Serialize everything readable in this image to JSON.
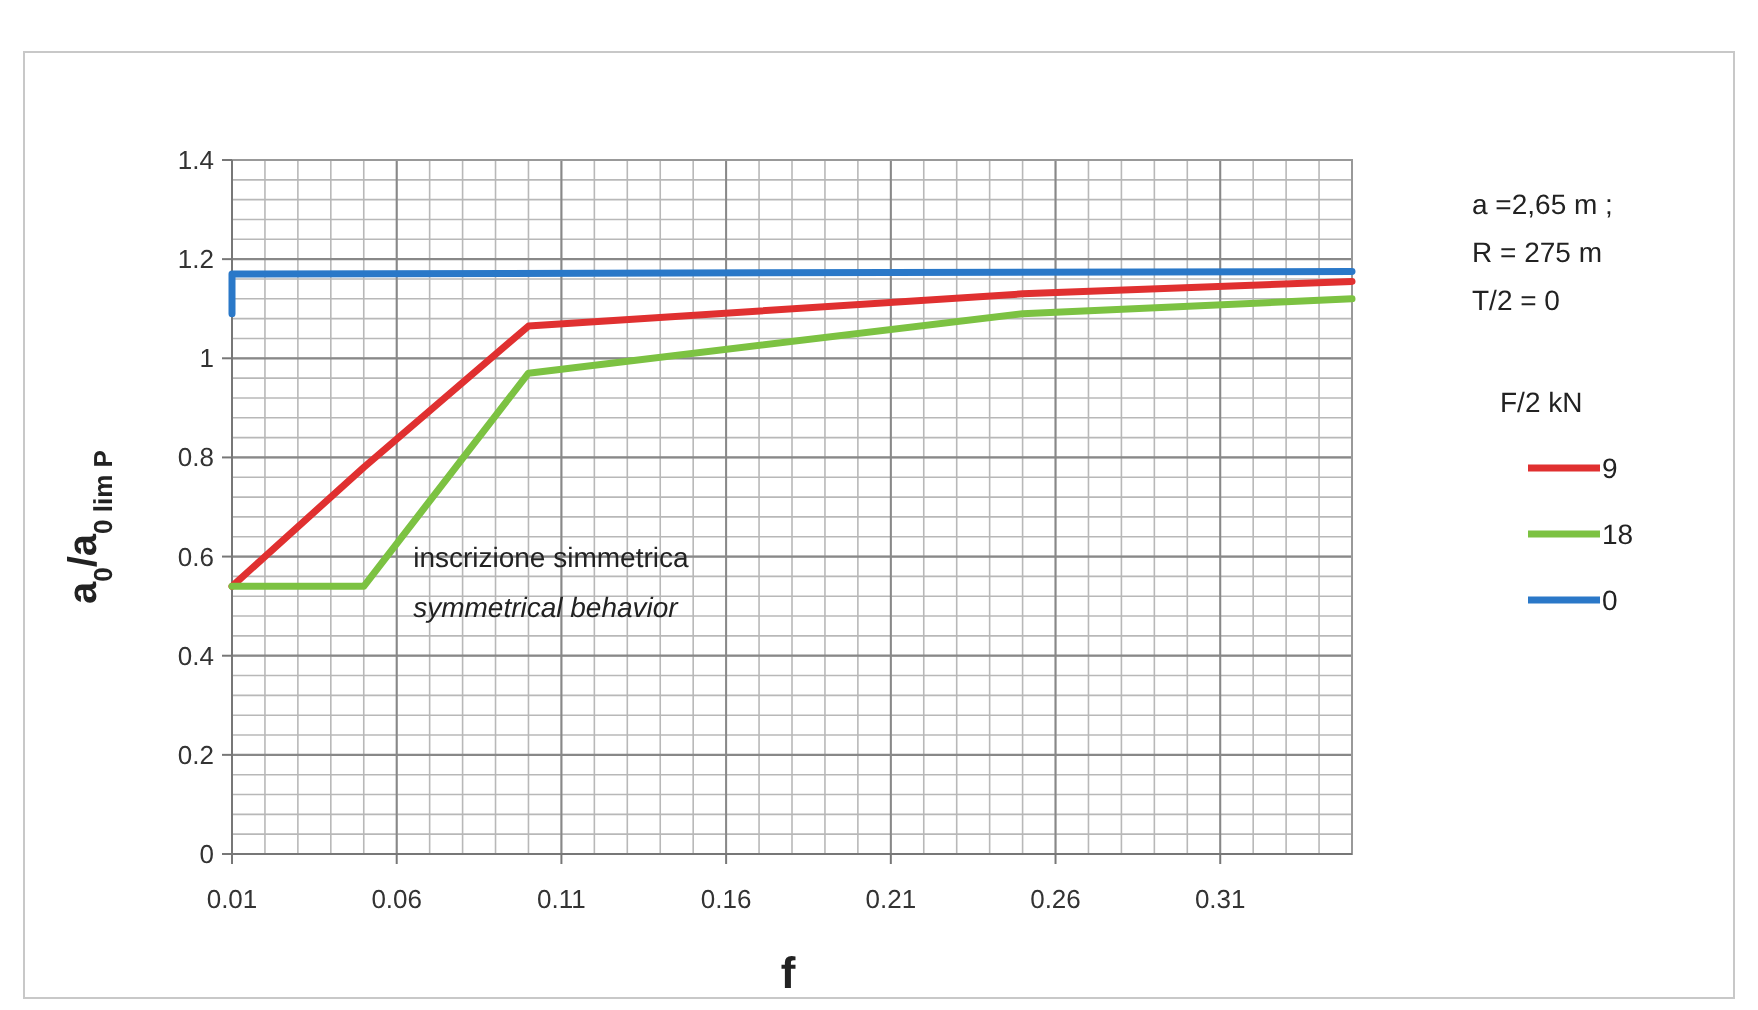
{
  "chart_data": {
    "type": "line",
    "xlabel": "f",
    "ylabel": "a$_{0}$/a$_{0 lim P}$",
    "legend_title": "F/2  kN",
    "legend": "right",
    "grid": true,
    "marker": "none",
    "line_style": "solid",
    "xlim": [
      0.01,
      0.35
    ],
    "xticks": [
      0.01,
      0.06,
      0.11,
      0.16,
      0.21,
      0.26,
      0.31
    ],
    "ylim": [
      0,
      1.4
    ],
    "yticks": [
      0,
      0.2,
      0.4,
      0.6,
      0.8,
      1,
      1.2,
      1.4
    ],
    "series": [
      {
        "name": "9",
        "color": "#e03030",
        "x": [
          0.01,
          0.05,
          0.1,
          0.25,
          0.35
        ],
        "values": [
          0.54,
          0.78,
          1.065,
          1.13,
          1.155
        ]
      },
      {
        "name": "18",
        "color": "#7cc242",
        "x": [
          0.01,
          0.05,
          0.1,
          0.25,
          0.35
        ],
        "values": [
          0.54,
          0.54,
          0.97,
          1.09,
          1.12
        ]
      },
      {
        "name": "0",
        "color": "#2a78c8",
        "x": [
          0.01,
          0.01,
          0.35
        ],
        "values": [
          1.09,
          1.17,
          1.175
        ]
      }
    ],
    "annotations": [
      "a =2,65  m ;",
      "R = 275  m",
      "T/2 = 0",
      "inscrizione simmetrica",
      "symmetrical behavior"
    ]
  }
}
